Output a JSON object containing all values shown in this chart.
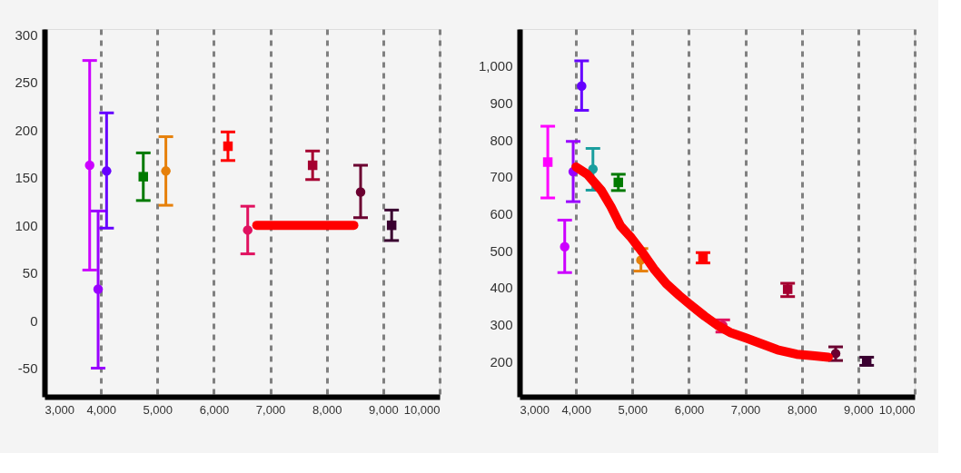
{
  "chart_data": [
    {
      "type": "scatter",
      "xlim": [
        3000,
        10000
      ],
      "xticks": [
        {
          "value": 3000,
          "label": "3,000"
        },
        {
          "value": 4000,
          "label": "4,000"
        },
        {
          "value": 5000,
          "label": "5,000"
        },
        {
          "value": 6000,
          "label": "6,000"
        },
        {
          "value": 7000,
          "label": "7,000"
        },
        {
          "value": 8000,
          "label": "8,000"
        },
        {
          "value": 9000,
          "label": "9,000"
        },
        {
          "value": 10000,
          "label": "10,000"
        }
      ],
      "ylim": [
        -80,
        306
      ],
      "yticks": [
        -50,
        0,
        50,
        100,
        150,
        200,
        250,
        300
      ],
      "grid": "x",
      "legend": false,
      "series": [
        {
          "type": "scatter",
          "color": "#cc00ff",
          "marker": "circle",
          "x": [
            3800
          ],
          "values": [
            163
          ],
          "errors": [
            [
              53,
              273
            ]
          ]
        },
        {
          "type": "scatter",
          "color": "#9900ff",
          "marker": "circle",
          "x": [
            3950
          ],
          "values": [
            33
          ],
          "errors": [
            [
              -50,
              115
            ]
          ]
        },
        {
          "type": "scatter",
          "color": "#6600ff",
          "marker": "circle",
          "x": [
            4100
          ],
          "values": [
            157
          ],
          "errors": [
            [
              97,
              218
            ]
          ]
        },
        {
          "type": "scatter",
          "color": "#007a00",
          "marker": "square",
          "x": [
            4750
          ],
          "values": [
            151
          ],
          "errors": [
            [
              126,
              176
            ]
          ]
        },
        {
          "type": "scatter",
          "color": "#e6800a",
          "marker": "circle",
          "x": [
            5150
          ],
          "values": [
            157
          ],
          "errors": [
            [
              121,
              193
            ]
          ]
        },
        {
          "type": "scatter",
          "color": "#ff0000",
          "marker": "square",
          "x": [
            6250
          ],
          "values": [
            183
          ],
          "errors": [
            [
              168,
              198
            ]
          ]
        },
        {
          "type": "scatter",
          "color": "#e0115f",
          "marker": "circle",
          "x": [
            6600
          ],
          "values": [
            95
          ],
          "errors": [
            [
              70,
              120
            ]
          ]
        },
        {
          "type": "line",
          "color": "#ff0000",
          "marker": "none",
          "x": [
            6760,
            8480
          ],
          "values": [
            100,
            100
          ]
        },
        {
          "type": "scatter",
          "color": "#a50030",
          "marker": "square",
          "x": [
            7750
          ],
          "values": [
            163
          ],
          "errors": [
            [
              148,
              178
            ]
          ]
        },
        {
          "type": "scatter",
          "color": "#6b0030",
          "marker": "circle",
          "x": [
            8600
          ],
          "values": [
            135
          ],
          "errors": [
            [
              108,
              163
            ]
          ]
        },
        {
          "type": "scatter",
          "color": "#3a0030",
          "marker": "square",
          "x": [
            9150
          ],
          "values": [
            100
          ],
          "errors": [
            [
              84,
              116
            ]
          ]
        }
      ]
    },
    {
      "type": "scatter",
      "xlim": [
        3000,
        10000
      ],
      "xticks": [
        {
          "value": 3000,
          "label": "3,000"
        },
        {
          "value": 4000,
          "label": "4,000"
        },
        {
          "value": 5000,
          "label": "5,000"
        },
        {
          "value": 6000,
          "label": "6,000"
        },
        {
          "value": 7000,
          "label": "7,000"
        },
        {
          "value": 8000,
          "label": "8,000"
        },
        {
          "value": 9000,
          "label": "9,000"
        },
        {
          "value": 10000,
          "label": "10,000"
        }
      ],
      "ylim": [
        105,
        1100
      ],
      "yticks": [
        200,
        300,
        400,
        500,
        600,
        700,
        800,
        900,
        {
          "value": 1000,
          "label": "1,000"
        }
      ],
      "grid": "x",
      "legend": false,
      "series": [
        {
          "type": "scatter",
          "color": "#ff00ff",
          "marker": "square",
          "x": [
            3500
          ],
          "values": [
            740
          ],
          "errors": [
            [
              643,
              837
            ]
          ]
        },
        {
          "type": "scatter",
          "color": "#cc00ff",
          "marker": "circle",
          "x": [
            3800
          ],
          "values": [
            511
          ],
          "errors": [
            [
              441,
              583
            ]
          ]
        },
        {
          "type": "scatter",
          "color": "#9900ff",
          "marker": "circle",
          "x": [
            3950
          ],
          "values": [
            714
          ],
          "errors": [
            [
              633,
              796
            ]
          ]
        },
        {
          "type": "scatter",
          "color": "#6600ff",
          "marker": "circle",
          "x": [
            4100
          ],
          "values": [
            946
          ],
          "errors": [
            [
              880,
              1014
            ]
          ]
        },
        {
          "type": "scatter",
          "color": "#1a9e9e",
          "marker": "circle",
          "x": [
            4300
          ],
          "values": [
            721
          ],
          "errors": [
            [
              664,
              777
            ]
          ]
        },
        {
          "type": "scatter",
          "color": "#007a00",
          "marker": "square",
          "x": [
            4750
          ],
          "values": [
            685
          ],
          "errors": [
            [
              663,
              707
            ]
          ]
        },
        {
          "type": "scatter",
          "color": "#e6800a",
          "marker": "circle",
          "x": [
            5150
          ],
          "values": [
            475
          ],
          "errors": [
            [
              445,
              506
            ]
          ]
        },
        {
          "type": "scatter",
          "color": "#ff0000",
          "marker": "square",
          "x": [
            6250
          ],
          "values": [
            481
          ],
          "errors": [
            [
              467,
              495
            ]
          ]
        },
        {
          "type": "scatter",
          "color": "#e0115f",
          "marker": "circle",
          "x": [
            6600
          ],
          "values": [
            298
          ],
          "errors": [
            [
              280,
              313
            ]
          ]
        },
        {
          "type": "scatter",
          "color": "#a50030",
          "marker": "square",
          "x": [
            7750
          ],
          "values": [
            396
          ],
          "errors": [
            [
              376,
              412
            ]
          ]
        },
        {
          "type": "scatter",
          "color": "#6b0030",
          "marker": "circle",
          "x": [
            8600
          ],
          "values": [
            222
          ],
          "errors": [
            [
              203,
              240
            ]
          ]
        },
        {
          "type": "scatter",
          "color": "#3a0030",
          "marker": "square",
          "x": [
            9150
          ],
          "values": [
            200
          ],
          "errors": [
            [
              190,
              212
            ]
          ]
        },
        {
          "type": "line",
          "color": "#ff0000",
          "marker": "none",
          "x": [
            4000,
            4200,
            4450,
            4620,
            4790,
            4980,
            5180,
            5380,
            5600,
            5830,
            6050,
            6280,
            6500,
            6730,
            7010,
            7290,
            7570,
            7910,
            8190,
            8470
          ],
          "values": [
            727,
            707,
            663,
            619,
            567,
            535,
            495,
            451,
            411,
            379,
            351,
            323,
            299,
            279,
            264,
            248,
            232,
            220,
            216,
            212
          ]
        }
      ]
    }
  ]
}
